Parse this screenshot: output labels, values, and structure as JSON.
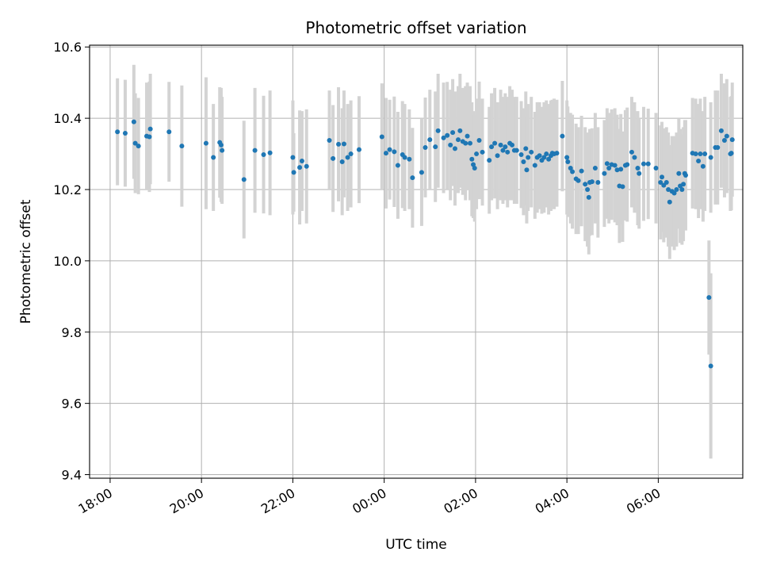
{
  "chart_data": {
    "type": "scatter",
    "title": "Photometric offset variation",
    "xlabel": "UTC time",
    "ylabel": "Photometric offset",
    "x_unit": "hours",
    "xlim": [
      -6.45,
      7.85
    ],
    "ylim": [
      9.39,
      10.605
    ],
    "grid": true,
    "xticks": [
      {
        "value": -6,
        "label": "18:00"
      },
      {
        "value": -4,
        "label": "20:00"
      },
      {
        "value": -2,
        "label": "22:00"
      },
      {
        "value": 0,
        "label": "00:00"
      },
      {
        "value": 2,
        "label": "02:00"
      },
      {
        "value": 4,
        "label": "04:00"
      },
      {
        "value": 6,
        "label": "06:00"
      }
    ],
    "yticks": [
      9.4,
      9.6,
      9.8,
      10.0,
      10.2,
      10.4,
      10.6
    ],
    "colors": {
      "point": "#1f77b4",
      "errorbar": "#d3d3d3",
      "grid": "#b0b0b0"
    },
    "series": [
      {
        "columns": [
          "x",
          "y",
          "yerr"
        ],
        "points": [
          [
            -5.84,
            10.362,
            0.15
          ],
          [
            -5.67,
            10.358,
            0.15
          ],
          [
            -5.48,
            10.39,
            0.16
          ],
          [
            -5.45,
            10.33,
            0.14
          ],
          [
            -5.38,
            10.322,
            0.135
          ],
          [
            -5.2,
            10.35,
            0.15
          ],
          [
            -5.14,
            10.348,
            0.155
          ],
          [
            -5.12,
            10.37,
            0.155
          ],
          [
            -4.71,
            10.362,
            0.14
          ],
          [
            -4.43,
            10.322,
            0.17
          ],
          [
            -3.9,
            10.33,
            0.185
          ],
          [
            -3.74,
            10.29,
            0.15
          ],
          [
            -3.6,
            10.332,
            0.155
          ],
          [
            -3.57,
            10.325,
            0.16
          ],
          [
            -3.55,
            10.31,
            0.15
          ],
          [
            -3.07,
            10.228,
            0.165
          ],
          [
            -2.83,
            10.31,
            0.175
          ],
          [
            -2.64,
            10.298,
            0.165
          ],
          [
            -2.5,
            10.303,
            0.175
          ],
          [
            -2.0,
            10.29,
            0.16
          ],
          [
            -1.98,
            10.248,
            0.11
          ],
          [
            -1.85,
            10.262,
            0.16
          ],
          [
            -1.8,
            10.28,
            0.14
          ],
          [
            -1.7,
            10.265,
            0.16
          ],
          [
            -1.2,
            10.338,
            0.14
          ],
          [
            -1.12,
            10.287,
            0.15
          ],
          [
            -1.0,
            10.327,
            0.16
          ],
          [
            -0.92,
            10.278,
            0.15
          ],
          [
            -0.88,
            10.328,
            0.15
          ],
          [
            -0.8,
            10.29,
            0.15
          ],
          [
            -0.73,
            10.3,
            0.15
          ],
          [
            -0.55,
            10.312,
            0.15
          ],
          [
            -0.05,
            10.348,
            0.15
          ],
          [
            0.04,
            10.302,
            0.155
          ],
          [
            0.12,
            10.312,
            0.14
          ],
          [
            0.22,
            10.306,
            0.155
          ],
          [
            0.3,
            10.268,
            0.15
          ],
          [
            0.4,
            10.298,
            0.15
          ],
          [
            0.45,
            10.29,
            0.15
          ],
          [
            0.55,
            10.285,
            0.14
          ],
          [
            0.62,
            10.233,
            0.14
          ],
          [
            0.82,
            10.248,
            0.15
          ],
          [
            0.9,
            10.318,
            0.14
          ],
          [
            1.0,
            10.34,
            0.14
          ],
          [
            1.12,
            10.32,
            0.155
          ],
          [
            1.18,
            10.365,
            0.16
          ],
          [
            1.3,
            10.345,
            0.155
          ],
          [
            1.38,
            10.352,
            0.15
          ],
          [
            1.45,
            10.325,
            0.155
          ],
          [
            1.5,
            10.36,
            0.15
          ],
          [
            1.55,
            10.315,
            0.16
          ],
          [
            1.62,
            10.34,
            0.15
          ],
          [
            1.66,
            10.365,
            0.16
          ],
          [
            1.72,
            10.335,
            0.15
          ],
          [
            1.78,
            10.33,
            0.16
          ],
          [
            1.82,
            10.35,
            0.15
          ],
          [
            1.88,
            10.33,
            0.16
          ],
          [
            1.92,
            10.285,
            0.16
          ],
          [
            1.95,
            10.27,
            0.15
          ],
          [
            1.98,
            10.26,
            0.15
          ],
          [
            2.02,
            10.3,
            0.155
          ],
          [
            2.08,
            10.338,
            0.165
          ],
          [
            2.15,
            10.305,
            0.15
          ],
          [
            2.3,
            10.282,
            0.15
          ],
          [
            2.35,
            10.32,
            0.15
          ],
          [
            2.42,
            10.33,
            0.155
          ],
          [
            2.48,
            10.295,
            0.15
          ],
          [
            2.55,
            10.325,
            0.155
          ],
          [
            2.6,
            10.31,
            0.15
          ],
          [
            2.65,
            10.32,
            0.15
          ],
          [
            2.7,
            10.305,
            0.155
          ],
          [
            2.75,
            10.33,
            0.16
          ],
          [
            2.8,
            10.325,
            0.155
          ],
          [
            2.85,
            10.31,
            0.15
          ],
          [
            2.9,
            10.31,
            0.15
          ],
          [
            3.0,
            10.298,
            0.15
          ],
          [
            3.05,
            10.278,
            0.15
          ],
          [
            3.1,
            10.315,
            0.16
          ],
          [
            3.12,
            10.255,
            0.15
          ],
          [
            3.15,
            10.29,
            0.15
          ],
          [
            3.22,
            10.305,
            0.155
          ],
          [
            3.3,
            10.268,
            0.15
          ],
          [
            3.35,
            10.29,
            0.155
          ],
          [
            3.4,
            10.295,
            0.15
          ],
          [
            3.45,
            10.282,
            0.15
          ],
          [
            3.5,
            10.29,
            0.155
          ],
          [
            3.55,
            10.3,
            0.15
          ],
          [
            3.6,
            10.285,
            0.155
          ],
          [
            3.65,
            10.295,
            0.155
          ],
          [
            3.68,
            10.302,
            0.15
          ],
          [
            3.72,
            10.3,
            0.155
          ],
          [
            3.78,
            10.302,
            0.15
          ],
          [
            3.9,
            10.35,
            0.155
          ],
          [
            4.0,
            10.29,
            0.16
          ],
          [
            4.02,
            10.278,
            0.155
          ],
          [
            4.08,
            10.26,
            0.155
          ],
          [
            4.12,
            10.25,
            0.16
          ],
          [
            4.2,
            10.23,
            0.155
          ],
          [
            4.25,
            10.225,
            0.15
          ],
          [
            4.32,
            10.252,
            0.155
          ],
          [
            4.4,
            10.215,
            0.16
          ],
          [
            4.45,
            10.2,
            0.16
          ],
          [
            4.48,
            10.178,
            0.16
          ],
          [
            4.5,
            10.22,
            0.15
          ],
          [
            4.55,
            10.222,
            0.15
          ],
          [
            4.62,
            10.26,
            0.155
          ],
          [
            4.68,
            10.22,
            0.155
          ],
          [
            4.82,
            10.245,
            0.15
          ],
          [
            4.88,
            10.273,
            0.155
          ],
          [
            4.92,
            10.26,
            0.155
          ],
          [
            4.98,
            10.27,
            0.155
          ],
          [
            5.05,
            10.268,
            0.16
          ],
          [
            5.1,
            10.255,
            0.155
          ],
          [
            5.15,
            10.21,
            0.16
          ],
          [
            5.18,
            10.257,
            0.155
          ],
          [
            5.22,
            10.208,
            0.155
          ],
          [
            5.28,
            10.268,
            0.155
          ],
          [
            5.32,
            10.27,
            0.16
          ],
          [
            5.42,
            10.305,
            0.155
          ],
          [
            5.48,
            10.29,
            0.155
          ],
          [
            5.55,
            10.26,
            0.16
          ],
          [
            5.58,
            10.245,
            0.155
          ],
          [
            5.68,
            10.272,
            0.16
          ],
          [
            5.78,
            10.272,
            0.155
          ],
          [
            5.95,
            10.26,
            0.155
          ],
          [
            6.05,
            10.22,
            0.16
          ],
          [
            6.08,
            10.235,
            0.155
          ],
          [
            6.12,
            10.212,
            0.16
          ],
          [
            6.18,
            10.22,
            0.155
          ],
          [
            6.22,
            10.2,
            0.16
          ],
          [
            6.25,
            10.165,
            0.16
          ],
          [
            6.3,
            10.195,
            0.155
          ],
          [
            6.35,
            10.19,
            0.16
          ],
          [
            6.4,
            10.2,
            0.16
          ],
          [
            6.45,
            10.245,
            0.155
          ],
          [
            6.48,
            10.21,
            0.16
          ],
          [
            6.52,
            10.2,
            0.155
          ],
          [
            6.55,
            10.215,
            0.16
          ],
          [
            6.58,
            10.245,
            0.15
          ],
          [
            6.6,
            10.24,
            0.155
          ],
          [
            6.75,
            10.302,
            0.155
          ],
          [
            6.82,
            10.3,
            0.155
          ],
          [
            6.88,
            10.28,
            0.16
          ],
          [
            6.92,
            10.3,
            0.155
          ],
          [
            6.98,
            10.265,
            0.155
          ],
          [
            7.02,
            10.3,
            0.16
          ],
          [
            7.15,
            10.29,
            0.155
          ],
          [
            7.25,
            10.318,
            0.16
          ],
          [
            7.3,
            10.318,
            0.16
          ],
          [
            7.38,
            10.365,
            0.16
          ],
          [
            7.45,
            10.338,
            0.16
          ],
          [
            7.5,
            10.35,
            0.16
          ],
          [
            7.58,
            10.3,
            0.16
          ],
          [
            7.6,
            10.302,
            0.16
          ],
          [
            7.62,
            10.34,
            0.16
          ],
          [
            7.11,
            9.897,
            0.16
          ],
          [
            7.15,
            9.705,
            0.26
          ]
        ]
      }
    ]
  }
}
